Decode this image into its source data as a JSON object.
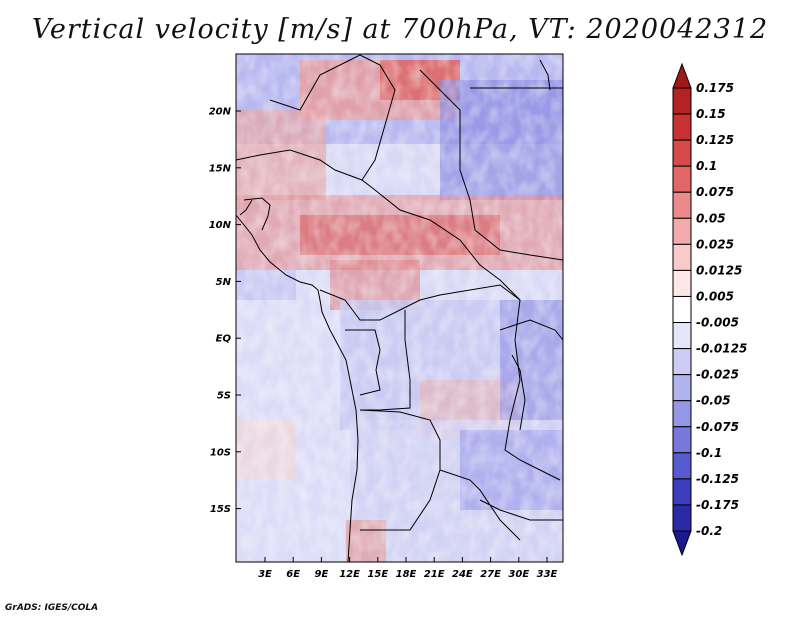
{
  "title": "Vertical velocity [m/s] at 700hPa, VT: 2020042312",
  "footer": "GrADS: IGES/COLA",
  "map": {
    "variable": "Vertical velocity",
    "units": "m/s",
    "level": "700hPa",
    "valid_time": "2020042312",
    "lat_labels": [
      "20N",
      "15N",
      "10N",
      "5N",
      "EQ",
      "5S",
      "10S",
      "15S"
    ],
    "lon_labels": [
      "3E",
      "6E",
      "9E",
      "12E",
      "15E",
      "18E",
      "21E",
      "24E",
      "27E",
      "30E",
      "33E"
    ]
  },
  "colorbar": {
    "labels": [
      "0.175",
      "0.15",
      "0.125",
      "0.1",
      "0.075",
      "0.05",
      "0.025",
      "0.0125",
      "0.005",
      "-0.005",
      "-0.0125",
      "-0.025",
      "-0.05",
      "-0.075",
      "-0.1",
      "-0.125",
      "-0.175",
      "-0.2"
    ],
    "colors": [
      "#a01818",
      "#b42222",
      "#c83232",
      "#d84a4a",
      "#e26868",
      "#ec8a8a",
      "#f4aaaa",
      "#facaca",
      "#fde6e6",
      "#ffffff",
      "#e6e6fb",
      "#ccccf5",
      "#b2b2ef",
      "#9696e6",
      "#7878dc",
      "#5a5ad0",
      "#3c3cbe",
      "#2a2aa8",
      "#1a1a90"
    ]
  }
}
